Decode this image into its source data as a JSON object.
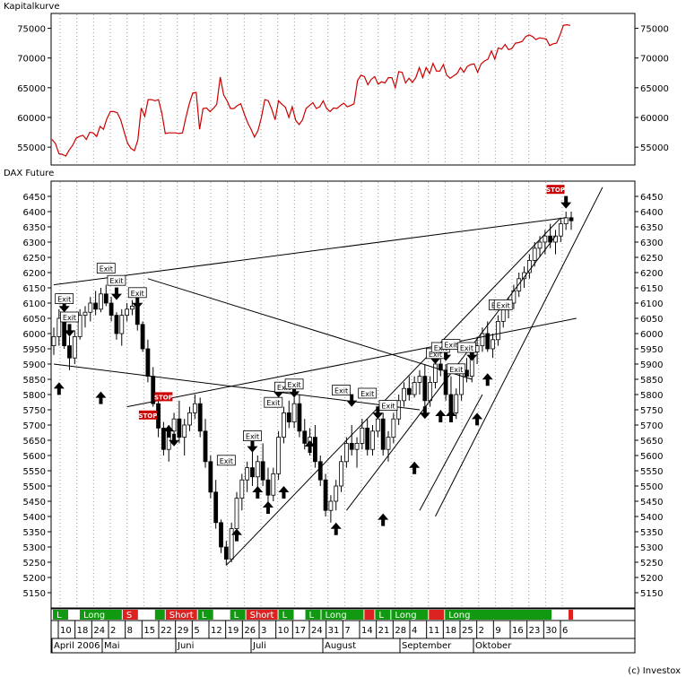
{
  "top_panel_title": "Kapitalkurve",
  "bottom_panel_title": "DAX Future",
  "credit": "(c) Investox",
  "chart_data": [
    {
      "type": "line",
      "title": "Kapitalkurve",
      "ylim": [
        52000,
        77500
      ],
      "yticks": [
        55000,
        60000,
        65000,
        70000,
        75000
      ],
      "color": "#cc0000",
      "series": [
        {
          "values": [
            56300,
            55600,
            53900,
            53800,
            53500,
            54500,
            55300,
            56500,
            56800,
            57000,
            56300,
            57500,
            57400,
            56800,
            58500,
            58000,
            59800,
            61000,
            61000,
            60800,
            59600,
            57600,
            55700,
            54800,
            54400,
            56200,
            61600,
            60200,
            63000,
            63000,
            62800,
            63000,
            60700,
            57300,
            57400,
            57400,
            57400,
            57300,
            57400,
            60000,
            62300,
            64100,
            64200,
            58000,
            61500,
            61600,
            61000,
            61500,
            62200,
            66800,
            63800,
            62800,
            61500,
            61500,
            62000,
            62300,
            60600,
            59100,
            58000,
            56700,
            57800,
            60000,
            63000,
            62800,
            61400,
            59600,
            62800,
            62200,
            61700,
            60000,
            61800,
            59500,
            58800,
            59600,
            61500,
            62000,
            62500,
            61500,
            61800,
            62800,
            61500,
            61000,
            61600,
            61500,
            62000,
            62400,
            61800,
            62000,
            62300,
            66200,
            67100,
            66900,
            65500,
            66400,
            66900,
            65600,
            66000,
            65800,
            66700,
            66700,
            65000,
            67700,
            67600,
            65800,
            66600,
            65900,
            66700,
            68400,
            66700,
            68400,
            67400,
            69100,
            67800,
            67800,
            68900,
            67100,
            66600,
            67000,
            67400,
            68400,
            67600,
            68600,
            68900,
            69000,
            67600,
            69000,
            69500,
            69800,
            71200,
            69800,
            71700,
            71500,
            72300,
            71400,
            71600,
            72500,
            72600,
            72800,
            73600,
            73900,
            73600,
            73100,
            73400,
            73300,
            73200,
            72100,
            72400,
            72500,
            73900,
            75500,
            75600,
            75500
          ]
        }
      ]
    },
    {
      "type": "candlestick",
      "title": "DAX Future",
      "ylim": [
        5100,
        6500
      ],
      "yticks": [
        5150,
        5200,
        5250,
        5300,
        5350,
        5400,
        5450,
        5500,
        5550,
        5600,
        5650,
        5700,
        5750,
        5800,
        5850,
        5900,
        5950,
        6000,
        6050,
        6100,
        6150,
        6200,
        6250,
        6300,
        6350,
        6400,
        6450
      ],
      "candles": [
        [
          5960,
          6020,
          5930,
          5990
        ],
        [
          5990,
          6080,
          5960,
          6050
        ],
        [
          6050,
          6070,
          5950,
          5960
        ],
        [
          5960,
          5990,
          5880,
          5920
        ],
        [
          5920,
          6010,
          5900,
          5990
        ],
        [
          5990,
          6080,
          5980,
          6060
        ],
        [
          6060,
          6090,
          6020,
          6070
        ],
        [
          6070,
          6120,
          6040,
          6100
        ],
        [
          6100,
          6140,
          6060,
          6080
        ],
        [
          6080,
          6150,
          6070,
          6130
        ],
        [
          6130,
          6160,
          6090,
          6100
        ],
        [
          6100,
          6120,
          6040,
          6060
        ],
        [
          6060,
          6070,
          5980,
          6000
        ],
        [
          6000,
          6080,
          5960,
          6060
        ],
        [
          6060,
          6100,
          6040,
          6080
        ],
        [
          6080,
          6110,
          6060,
          6090
        ],
        [
          6090,
          6100,
          6010,
          6030
        ],
        [
          6030,
          6040,
          5940,
          5950
        ],
        [
          5950,
          5980,
          5840,
          5860
        ],
        [
          5860,
          5890,
          5760,
          5770
        ],
        [
          5770,
          5800,
          5660,
          5690
        ],
        [
          5690,
          5710,
          5600,
          5620
        ],
        [
          5620,
          5700,
          5580,
          5680
        ],
        [
          5680,
          5740,
          5650,
          5720
        ],
        [
          5720,
          5780,
          5640,
          5660
        ],
        [
          5660,
          5720,
          5600,
          5700
        ],
        [
          5700,
          5760,
          5680,
          5740
        ],
        [
          5740,
          5800,
          5720,
          5770
        ],
        [
          5770,
          5790,
          5660,
          5680
        ],
        [
          5680,
          5720,
          5560,
          5580
        ],
        [
          5580,
          5600,
          5460,
          5480
        ],
        [
          5480,
          5520,
          5360,
          5380
        ],
        [
          5380,
          5390,
          5280,
          5300
        ],
        [
          5300,
          5320,
          5240,
          5260
        ],
        [
          5260,
          5380,
          5250,
          5360
        ],
        [
          5360,
          5480,
          5340,
          5460
        ],
        [
          5460,
          5540,
          5420,
          5520
        ],
        [
          5520,
          5580,
          5480,
          5560
        ],
        [
          5560,
          5620,
          5500,
          5530
        ],
        [
          5530,
          5600,
          5490,
          5580
        ],
        [
          5580,
          5640,
          5500,
          5520
        ],
        [
          5520,
          5560,
          5440,
          5470
        ],
        [
          5470,
          5560,
          5450,
          5540
        ],
        [
          5540,
          5680,
          5520,
          5660
        ],
        [
          5660,
          5760,
          5640,
          5740
        ],
        [
          5740,
          5780,
          5690,
          5710
        ],
        [
          5710,
          5790,
          5690,
          5770
        ],
        [
          5770,
          5800,
          5660,
          5680
        ],
        [
          5680,
          5720,
          5620,
          5640
        ],
        [
          5640,
          5690,
          5600,
          5660
        ],
        [
          5660,
          5700,
          5560,
          5580
        ],
        [
          5580,
          5600,
          5500,
          5520
        ],
        [
          5520,
          5540,
          5400,
          5420
        ],
        [
          5420,
          5470,
          5380,
          5450
        ],
        [
          5450,
          5520,
          5420,
          5500
        ],
        [
          5500,
          5600,
          5480,
          5580
        ],
        [
          5580,
          5660,
          5560,
          5640
        ],
        [
          5640,
          5700,
          5600,
          5620
        ],
        [
          5620,
          5660,
          5560,
          5640
        ],
        [
          5640,
          5720,
          5620,
          5690
        ],
        [
          5690,
          5720,
          5600,
          5620
        ],
        [
          5620,
          5700,
          5600,
          5680
        ],
        [
          5680,
          5740,
          5660,
          5720
        ],
        [
          5720,
          5740,
          5600,
          5620
        ],
        [
          5620,
          5680,
          5580,
          5660
        ],
        [
          5660,
          5740,
          5640,
          5720
        ],
        [
          5720,
          5800,
          5700,
          5780
        ],
        [
          5780,
          5840,
          5760,
          5820
        ],
        [
          5820,
          5860,
          5780,
          5800
        ],
        [
          5800,
          5860,
          5790,
          5840
        ],
        [
          5840,
          5880,
          5800,
          5860
        ],
        [
          5860,
          5900,
          5760,
          5780
        ],
        [
          5780,
          5860,
          5760,
          5840
        ],
        [
          5840,
          5920,
          5820,
          5900
        ],
        [
          5900,
          5940,
          5860,
          5880
        ],
        [
          5880,
          5900,
          5780,
          5800
        ],
        [
          5800,
          5860,
          5720,
          5740
        ],
        [
          5740,
          5820,
          5720,
          5800
        ],
        [
          5800,
          5900,
          5780,
          5880
        ],
        [
          5880,
          5920,
          5840,
          5860
        ],
        [
          5860,
          5960,
          5840,
          5940
        ],
        [
          5940,
          5990,
          5900,
          5960
        ],
        [
          5960,
          6020,
          5940,
          6000
        ],
        [
          6000,
          6040,
          5940,
          5950
        ],
        [
          5950,
          6000,
          5920,
          5980
        ],
        [
          5980,
          6060,
          5960,
          6040
        ],
        [
          6040,
          6100,
          6020,
          6080
        ],
        [
          6080,
          6120,
          6050,
          6100
        ],
        [
          6100,
          6160,
          6080,
          6140
        ],
        [
          6140,
          6200,
          6120,
          6180
        ],
        [
          6180,
          6220,
          6150,
          6200
        ],
        [
          6200,
          6260,
          6180,
          6240
        ],
        [
          6240,
          6300,
          6220,
          6280
        ],
        [
          6280,
          6320,
          6250,
          6300
        ],
        [
          6300,
          6340,
          6260,
          6320
        ],
        [
          6320,
          6360,
          6280,
          6300
        ],
        [
          6300,
          6340,
          6260,
          6320
        ],
        [
          6320,
          6380,
          6300,
          6360
        ],
        [
          6360,
          6400,
          6340,
          6380
        ],
        [
          6380,
          6400,
          6340,
          6370
        ]
      ],
      "trendlines": [
        [
          0,
          6160,
          98,
          6380
        ],
        [
          0,
          5900,
          70,
          5750
        ],
        [
          18,
          6180,
          80,
          5850
        ],
        [
          33,
          5240,
          97,
          6380
        ],
        [
          56,
          5420,
          96,
          6320
        ],
        [
          14,
          5760,
          100,
          6050
        ],
        [
          73,
          5400,
          105,
          6480
        ],
        [
          70,
          5420,
          82,
          5800
        ]
      ],
      "signal_markers": {
        "exit_labels": [
          [
            2,
            6110,
            "Exit"
          ],
          [
            3,
            6050,
            "Exit"
          ],
          [
            10,
            6210,
            "Exit"
          ],
          [
            12,
            6170,
            "Exit"
          ],
          [
            16,
            6130,
            "Exit"
          ],
          [
            33,
            5580,
            "Exit"
          ],
          [
            38,
            5660,
            "Exit"
          ],
          [
            42,
            5770,
            "Exit"
          ],
          [
            44,
            5820,
            "Exit"
          ],
          [
            46,
            5830,
            "Exit"
          ],
          [
            55,
            5810,
            "Exit"
          ],
          [
            60,
            5800,
            "Exit"
          ],
          [
            64,
            5760,
            "Exit"
          ],
          [
            73,
            5930,
            "Exit"
          ],
          [
            74,
            5950,
            "Exit"
          ],
          [
            76,
            5960,
            "Exit"
          ],
          [
            77,
            5880,
            "Exit"
          ],
          [
            79,
            5950,
            "Exit"
          ],
          [
            85,
            6090,
            "Exit"
          ],
          [
            86,
            6090,
            "Exit"
          ]
        ],
        "stop_labels": [
          [
            18,
            5730,
            "STOP"
          ],
          [
            21,
            5790,
            "STOP"
          ],
          [
            96,
            6470,
            "STOP"
          ]
        ],
        "up_arrows": [
          [
            1,
            5840
          ],
          [
            9,
            5810
          ],
          [
            22,
            5700
          ],
          [
            35,
            5360
          ],
          [
            39,
            5500
          ],
          [
            41,
            5450
          ],
          [
            44,
            5500
          ],
          [
            49,
            5650
          ],
          [
            54,
            5380
          ],
          [
            63,
            5410
          ],
          [
            69,
            5580
          ],
          [
            74,
            5750
          ],
          [
            76,
            5750
          ],
          [
            81,
            5740
          ],
          [
            83,
            5870
          ]
        ],
        "down_arrows": [
          [
            2,
            6070
          ],
          [
            3,
            5990
          ],
          [
            12,
            6110
          ],
          [
            16,
            6080
          ],
          [
            23,
            5630
          ],
          [
            38,
            5610
          ],
          [
            43,
            5790
          ],
          [
            46,
            5790
          ],
          [
            57,
            5760
          ],
          [
            62,
            5720
          ],
          [
            71,
            5720
          ],
          [
            73,
            5900
          ],
          [
            75,
            5910
          ],
          [
            80,
            5910
          ],
          [
            98,
            6410
          ]
        ]
      },
      "position_bands": [
        [
          3,
          "green",
          "L"
        ],
        [
          2,
          "white",
          ""
        ],
        [
          8,
          "green",
          "Long"
        ],
        [
          3,
          "red",
          "S"
        ],
        [
          3,
          "white",
          ""
        ],
        [
          2,
          "green",
          ""
        ],
        [
          6,
          "red",
          "Short"
        ],
        [
          3,
          "green",
          "L"
        ],
        [
          3,
          "white",
          ""
        ],
        [
          3,
          "green",
          "L"
        ],
        [
          6,
          "red",
          "Short"
        ],
        [
          3,
          "green",
          "L"
        ],
        [
          2,
          "white",
          ""
        ],
        [
          3,
          "green",
          "L"
        ],
        [
          8,
          "green",
          "Long"
        ],
        [
          2,
          "red",
          ""
        ],
        [
          3,
          "green",
          "L"
        ],
        [
          7,
          "green",
          "Long"
        ],
        [
          3,
          "red",
          ""
        ],
        [
          20,
          "green",
          "Long"
        ],
        [
          3,
          "white",
          ""
        ],
        [
          1,
          "red",
          ""
        ]
      ],
      "date_ticks": [
        "10",
        "18",
        "24",
        "2",
        "8",
        "15",
        "22",
        "29",
        "5",
        "12",
        "19",
        "26",
        "3",
        "10",
        "17",
        "24",
        "31",
        "7",
        "14",
        "21",
        "28",
        "4",
        "11",
        "18",
        "25",
        "2",
        "9",
        "16",
        "23",
        "30",
        "6"
      ],
      "month_labels": [
        "April 2006",
        "Mai",
        "Juni",
        "Juli",
        "August",
        "September",
        "Oktober"
      ]
    }
  ]
}
